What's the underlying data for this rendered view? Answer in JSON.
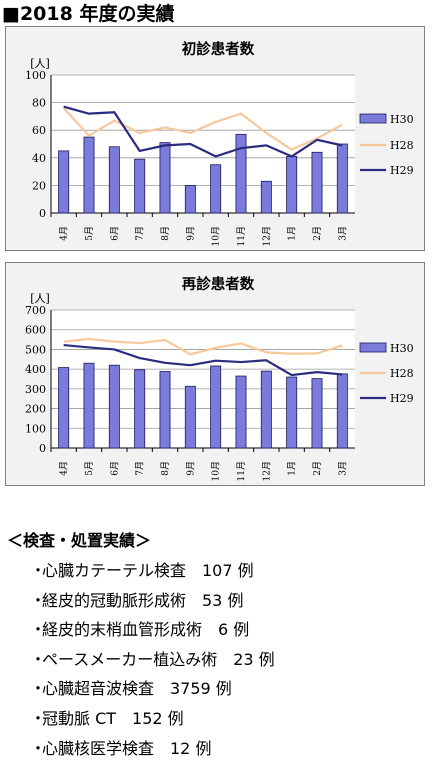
{
  "page": {
    "heading": "■2018 年度の実績",
    "section_title": "＜検査・処置実績＞",
    "items": [
      {
        "bullet": "・",
        "text": "心臓カテーテル検査　107 例"
      },
      {
        "bullet": "・",
        "text": "経皮的冠動脈形成術　53 例"
      },
      {
        "bullet": "・",
        "text": "経皮的末梢血管形成術　6 例"
      },
      {
        "bullet": "・",
        "text": "ペースメーカー植込み術　23 例"
      },
      {
        "bullet": "・",
        "text": "心臓超音波検査　3759 例"
      },
      {
        "bullet": "・",
        "text": "冠動脈 CT　152 例"
      },
      {
        "bullet": "・",
        "text": "心臓核医学検査　12 例"
      }
    ]
  },
  "chart_data": [
    {
      "type": "bar",
      "title": "初診患者数",
      "ylabel": "[人]",
      "xlabel": "",
      "ylim": [
        0,
        100
      ],
      "yticks": [
        0,
        20,
        40,
        60,
        80,
        100
      ],
      "grid": true,
      "legend_position": "right",
      "categories": [
        "4月",
        "5月",
        "6月",
        "7月",
        "8月",
        "9月",
        "10月",
        "11月",
        "12月",
        "1月",
        "2月",
        "3月"
      ],
      "series": [
        {
          "name": "H30",
          "kind": "bar",
          "color": "#7b7bdb",
          "values": [
            45,
            55,
            48,
            39,
            51,
            20,
            35,
            57,
            23,
            41,
            44,
            50
          ]
        },
        {
          "name": "H28",
          "kind": "line",
          "color": "#f8c89a",
          "values": [
            76,
            56,
            67,
            58,
            62,
            58,
            66,
            72,
            58,
            46,
            54,
            64
          ]
        },
        {
          "name": "H29",
          "kind": "line",
          "color": "#2b2b80",
          "values": [
            77,
            72,
            73,
            45,
            49,
            50,
            41,
            47,
            49,
            41,
            53,
            49
          ]
        }
      ]
    },
    {
      "type": "bar",
      "title": "再診患者数",
      "ylabel": "[人]",
      "xlabel": "",
      "ylim": [
        0,
        700
      ],
      "yticks": [
        0,
        100,
        200,
        300,
        400,
        500,
        600,
        700
      ],
      "grid": true,
      "legend_position": "right",
      "categories": [
        "4月",
        "5月",
        "6月",
        "7月",
        "8月",
        "9月",
        "10月",
        "11月",
        "12月",
        "1月",
        "2月",
        "3月"
      ],
      "series": [
        {
          "name": "H30",
          "kind": "bar",
          "color": "#7b7bdb",
          "values": [
            408,
            430,
            420,
            397,
            388,
            313,
            416,
            365,
            390,
            360,
            352,
            376
          ]
        },
        {
          "name": "H28",
          "kind": "line",
          "color": "#f8c89a",
          "values": [
            540,
            553,
            540,
            532,
            548,
            475,
            508,
            530,
            485,
            478,
            480,
            520
          ]
        },
        {
          "name": "H29",
          "kind": "line",
          "color": "#2b2b80",
          "values": [
            522,
            510,
            500,
            456,
            432,
            420,
            443,
            436,
            445,
            370,
            385,
            373
          ]
        }
      ]
    }
  ]
}
